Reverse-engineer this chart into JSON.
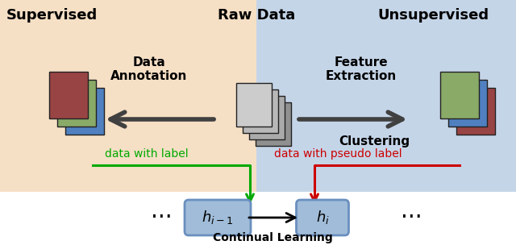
{
  "bg_supervised_color": "#f5dfc5",
  "bg_unsupervised_color": "#c5d5e8",
  "bg_white_color": "#ffffff",
  "supervised_label": "Supervised",
  "unsupervised_label": "Unsupervised",
  "raw_data_label": "Raw Data",
  "data_annotation_label": "Data\nAnnotation",
  "feature_extraction_label": "Feature\nExtraction",
  "clustering_label": "Clustering",
  "data_with_label": "data with label",
  "data_with_pseudo_label": "data with pseudo label",
  "continual_learning_label": "Continual Learning",
  "box_color": "#6a8fbf",
  "box_face_color": "#a0bcd8",
  "arrow_dark": "#404040",
  "arrow_green": "#00aa00",
  "arrow_red": "#cc0000",
  "img_blue": "#5080c0",
  "img_green_card": "#8aaa68",
  "img_red": "#994444",
  "img_gray1": "#909090",
  "img_gray2": "#aaaaaa",
  "img_gray3": "#b8b8b8",
  "img_gray4": "#cccccc",
  "border_color": "#222222",
  "text_black": "#000000"
}
